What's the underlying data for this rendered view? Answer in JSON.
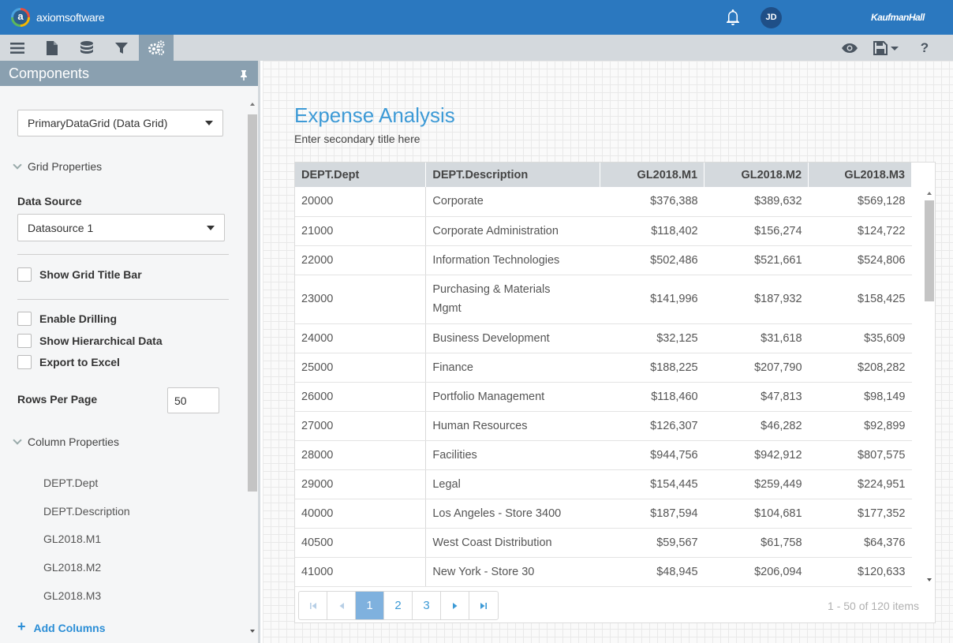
{
  "header": {
    "logo_text": "axiomsoftware",
    "user_initials": "JD",
    "brand": "KaufmanHall"
  },
  "toolbar": {
    "left_icons": [
      "menu-icon",
      "document-icon",
      "database-icon",
      "filter-icon",
      "gears-icon"
    ],
    "right_icons": [
      "eye-icon",
      "save-icon",
      "help-icon"
    ],
    "help_label": "?"
  },
  "sidebar": {
    "title": "Components",
    "component_select": "PrimaryDataGrid (Data Grid)",
    "grid_properties_label": "Grid Properties",
    "data_source_label": "Data Source",
    "data_source_value": "Datasource 1",
    "show_grid_title_bar": "Show Grid Title Bar",
    "enable_drilling": "Enable Drilling",
    "show_hierarchical": "Show Hierarchical Data",
    "export_excel": "Export to Excel",
    "rows_per_page_label": "Rows Per Page",
    "rows_per_page_value": "50",
    "column_properties_label": "Column Properties",
    "columns": [
      "DEPT.Dept",
      "DEPT.Description",
      "GL2018.M1",
      "GL2018.M2",
      "GL2018.M3"
    ],
    "add_columns": "Add Columns"
  },
  "report": {
    "title": "Expense Analysis",
    "subtitle": "Enter secondary title here",
    "headers": [
      "DEPT.Dept",
      "DEPT.Description",
      "GL2018.M1",
      "GL2018.M2",
      "GL2018.M3"
    ],
    "rows": [
      [
        "20000",
        "Corporate",
        "$376,388",
        "$389,632",
        "$569,128"
      ],
      [
        "21000",
        "Corporate Administration",
        "$118,402",
        "$156,274",
        "$124,722"
      ],
      [
        "22000",
        "Information Technologies",
        "$502,486",
        "$521,661",
        "$524,806"
      ],
      [
        "23000",
        "Purchasing & Materials Mgmt",
        "$141,996",
        "$187,932",
        "$158,425"
      ],
      [
        "24000",
        "Business Development",
        "$32,125",
        "$31,618",
        "$35,609"
      ],
      [
        "25000",
        "Finance",
        "$188,225",
        "$207,790",
        "$208,282"
      ],
      [
        "26000",
        "Portfolio Management",
        "$118,460",
        "$47,813",
        "$98,149"
      ],
      [
        "27000",
        "Human Resources",
        "$126,307",
        "$46,282",
        "$92,899"
      ],
      [
        "28000",
        "Facilities",
        "$944,756",
        "$942,912",
        "$807,575"
      ],
      [
        "29000",
        "Legal",
        "$154,445",
        "$259,449",
        "$224,951"
      ],
      [
        "40000",
        "Los Angeles - Store 3400",
        "$187,594",
        "$104,681",
        "$177,352"
      ],
      [
        "40500",
        "West Coast Distribution",
        "$59,567",
        "$61,758",
        "$64,376"
      ],
      [
        "41000",
        "New York - Store 30",
        "$48,945",
        "$206,094",
        "$120,633"
      ]
    ],
    "pager": {
      "pages": [
        "1",
        "2",
        "3"
      ],
      "current": "1",
      "info": "1 - 50 of 120 items"
    }
  },
  "colors": {
    "header_blue": "#2b78bf",
    "panel_gray": "#8aa0b0",
    "title_blue": "#3d9ad6",
    "link_blue": "#2b8ed6"
  }
}
